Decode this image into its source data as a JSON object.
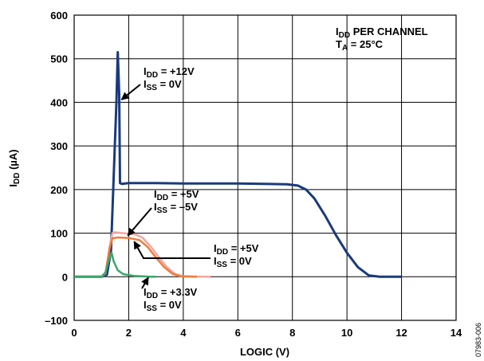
{
  "chart_data": {
    "type": "line",
    "xlabel": "LOGIC (V)",
    "ylabel_main": "I",
    "ylabel_sub": "DD",
    "ylabel_unit": " (µA)",
    "xlim": [
      0,
      14
    ],
    "ylim": [
      -100,
      600
    ],
    "x_ticks": [
      0,
      2,
      4,
      6,
      8,
      10,
      12,
      14
    ],
    "y_ticks": [
      -100,
      0,
      100,
      200,
      300,
      400,
      500,
      600
    ],
    "x_tick_labels": [
      "0",
      "2",
      "4",
      "6",
      "8",
      "10",
      "12",
      "14"
    ],
    "y_tick_labels": [
      "–100",
      "0",
      "100",
      "200",
      "300",
      "400",
      "500",
      "600"
    ],
    "grid": true,
    "title_block": {
      "line1_main": "I",
      "line1_sub": "DD",
      "line1_rest": " PER CHANNEL",
      "line2_main": "T",
      "line2_sub": "A",
      "line2_rest": " = 25°C"
    },
    "series": [
      {
        "color": "#1a3a7c",
        "points": [
          [
            0,
            0
          ],
          [
            1,
            0
          ],
          [
            1.2,
            5
          ],
          [
            1.35,
            60
          ],
          [
            1.45,
            230
          ],
          [
            1.55,
            400
          ],
          [
            1.6,
            515
          ],
          [
            1.65,
            420
          ],
          [
            1.68,
            215
          ],
          [
            1.75,
            213
          ],
          [
            2,
            215
          ],
          [
            3,
            215
          ],
          [
            4,
            214
          ],
          [
            5,
            214
          ],
          [
            6,
            214
          ],
          [
            7,
            213
          ],
          [
            7.8,
            212
          ],
          [
            8.2,
            209
          ],
          [
            8.5,
            200
          ],
          [
            8.8,
            180
          ],
          [
            9.2,
            140
          ],
          [
            9.6,
            95
          ],
          [
            10,
            55
          ],
          [
            10.4,
            22
          ],
          [
            10.8,
            3
          ],
          [
            11.2,
            0
          ],
          [
            12,
            0
          ]
        ]
      },
      {
        "color": "#f4a6a0",
        "points": [
          [
            0,
            0
          ],
          [
            1.0,
            0
          ],
          [
            1.15,
            8
          ],
          [
            1.3,
            70
          ],
          [
            1.4,
            100
          ],
          [
            1.5,
            102
          ],
          [
            1.8,
            100
          ],
          [
            2.2,
            98
          ],
          [
            2.5,
            90
          ],
          [
            2.8,
            70
          ],
          [
            3.1,
            45
          ],
          [
            3.4,
            22
          ],
          [
            3.7,
            6
          ],
          [
            4,
            1
          ],
          [
            5,
            0
          ]
        ]
      },
      {
        "color": "#f07c3a",
        "points": [
          [
            0,
            0
          ],
          [
            1.0,
            0
          ],
          [
            1.15,
            8
          ],
          [
            1.3,
            65
          ],
          [
            1.4,
            88
          ],
          [
            1.6,
            90
          ],
          [
            2,
            89
          ],
          [
            2.4,
            84
          ],
          [
            2.7,
            68
          ],
          [
            3,
            44
          ],
          [
            3.3,
            22
          ],
          [
            3.6,
            7
          ],
          [
            3.9,
            1
          ],
          [
            4.5,
            0
          ]
        ]
      },
      {
        "color": "#3aa66a",
        "points": [
          [
            0,
            0
          ],
          [
            1.0,
            0
          ],
          [
            1.15,
            10
          ],
          [
            1.3,
            45
          ],
          [
            1.37,
            55
          ],
          [
            1.45,
            35
          ],
          [
            1.6,
            15
          ],
          [
            1.8,
            6
          ],
          [
            2.2,
            2
          ],
          [
            2.8,
            0
          ],
          [
            3,
            0
          ]
        ]
      }
    ],
    "annotations": [
      {
        "l1_main": "I",
        "l1_sub": "DD",
        "l1_rest": " = +12V",
        "l2_main": "I",
        "l2_sub": "SS",
        "l2_rest": " = 0V",
        "arrow_to": [
          1.62,
          410
        ]
      },
      {
        "l1_main": "I",
        "l1_sub": "DD",
        "l1_rest": " = +5V",
        "l2_main": "I",
        "l2_sub": "SS",
        "l2_rest": " = –5V",
        "arrow_to": [
          1.85,
          98
        ]
      },
      {
        "l1_main": "I",
        "l1_sub": "DD",
        "l1_rest": " = +5V",
        "l2_main": "I",
        "l2_sub": "SS",
        "l2_rest": " = 0V",
        "arrow_to": [
          2.2,
          88
        ]
      },
      {
        "l1_main": "I",
        "l1_sub": "DD",
        "l1_rest": " = +3.3V",
        "l2_main": "I",
        "l2_sub": "SS",
        "l2_rest": " = 0V",
        "arrow_to": [
          2.6,
          2
        ]
      }
    ],
    "figure_id": "07983-006"
  }
}
